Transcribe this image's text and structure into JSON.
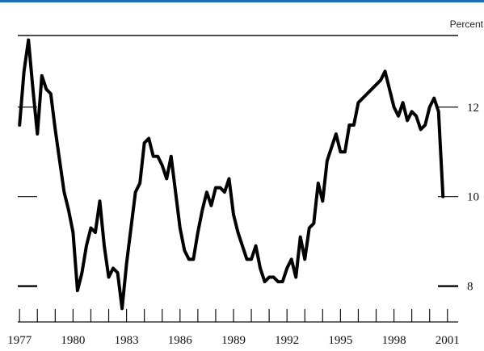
{
  "chart_data": {
    "type": "line",
    "title": "",
    "xlabel": "",
    "ylabel": "",
    "unit_label": "Percent",
    "xlim": [
      1976.9,
      2001.6
    ],
    "ylim": [
      7.2,
      13.6
    ],
    "x_tick_labels": [
      "1977",
      "1980",
      "1983",
      "1986",
      "1989",
      "1992",
      "1995",
      "1998",
      "2001"
    ],
    "y_tick_labels": [
      "8",
      "10",
      "12"
    ],
    "y_tick_values": [
      8,
      10,
      12
    ],
    "grid": false,
    "legend": "none",
    "series": [
      {
        "x": [
          1977.0,
          1977.25,
          1977.5,
          1977.75,
          1978.0,
          1978.25,
          1978.5,
          1978.75,
          1979.0,
          1979.25,
          1979.5,
          1979.75,
          1980.0,
          1980.25,
          1980.5,
          1980.75,
          1981.0,
          1981.25,
          1981.5,
          1981.75,
          1982.0,
          1982.25,
          1982.5,
          1982.75,
          1983.0,
          1983.25,
          1983.5,
          1983.75,
          1984.0,
          1984.25,
          1984.5,
          1984.75,
          1985.0,
          1985.25,
          1985.5,
          1985.75,
          1986.0,
          1986.25,
          1986.5,
          1986.75,
          1987.0,
          1987.25,
          1987.5,
          1987.75,
          1988.0,
          1988.25,
          1988.5,
          1988.75,
          1989.0,
          1989.25,
          1989.5,
          1989.75,
          1990.0,
          1990.25,
          1990.5,
          1990.75,
          1991.0,
          1991.25,
          1991.5,
          1991.75,
          1992.0,
          1992.25,
          1992.5,
          1992.75,
          1993.0,
          1993.25,
          1993.5,
          1993.75,
          1994.0,
          1994.25,
          1994.5,
          1994.75,
          1995.0,
          1995.25,
          1995.5,
          1995.75,
          1996.0,
          1996.25,
          1996.5,
          1996.75,
          1997.0,
          1997.25,
          1997.5,
          1997.75,
          1998.0,
          1998.25,
          1998.5,
          1998.75,
          1999.0,
          1999.25,
          1999.5,
          1999.75,
          2000.0,
          2000.25,
          2000.5,
          2000.75
        ],
        "values": [
          11.6,
          12.8,
          13.5,
          12.4,
          11.4,
          12.7,
          12.4,
          12.3,
          11.5,
          10.8,
          10.1,
          9.7,
          9.2,
          7.9,
          8.3,
          8.9,
          9.3,
          9.2,
          9.9,
          8.9,
          8.2,
          8.4,
          8.3,
          7.5,
          8.5,
          9.3,
          10.1,
          10.3,
          11.2,
          11.3,
          10.9,
          10.9,
          10.7,
          10.4,
          10.9,
          10.1,
          9.3,
          8.8,
          8.6,
          8.6,
          9.2,
          9.7,
          10.1,
          9.8,
          10.2,
          10.2,
          10.1,
          10.4,
          9.6,
          9.2,
          8.9,
          8.6,
          8.6,
          8.9,
          8.4,
          8.1,
          8.2,
          8.2,
          8.1,
          8.1,
          8.4,
          8.6,
          8.2,
          9.1,
          8.6,
          9.3,
          9.4,
          10.3,
          9.9,
          10.8,
          11.1,
          11.4,
          11.0,
          11.0,
          11.6,
          11.6,
          12.1,
          12.2,
          12.3,
          12.4,
          12.5,
          12.6,
          12.8,
          12.4,
          12.0,
          11.8,
          12.1,
          11.7,
          11.9,
          11.8,
          11.5,
          11.6,
          12.0,
          12.2,
          11.9,
          10.0
        ]
      }
    ]
  }
}
